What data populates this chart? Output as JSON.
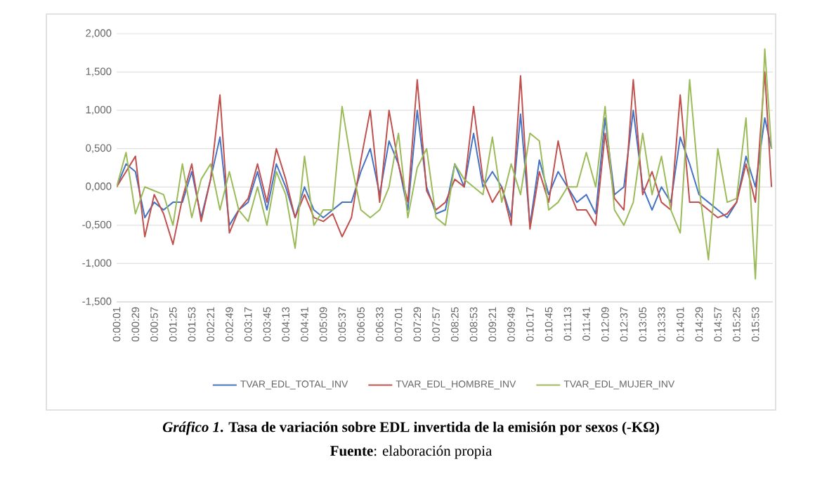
{
  "chart_data": {
    "type": "line",
    "title": "*Gráfico 1*. Tasa de variación sobre EDL invertida de la emisión por sexos (-KΩ)",
    "annotations": [
      "**Fuente**: elaboración propia"
    ],
    "x": [
      0.000278,
      0.004167,
      0.008056,
      0.011944,
      0.015833,
      0.019722,
      0.023611,
      0.0275,
      0.031389,
      0.035278,
      0.039167,
      0.043056,
      0.046944,
      0.050833,
      0.054722,
      0.058611,
      0.0625,
      0.066389,
      0.070278,
      0.074167,
      0.078056,
      0.081944,
      0.085833,
      0.089722,
      0.093611,
      0.0975,
      0.101389,
      0.105278,
      0.109167,
      0.113056,
      0.116944,
      0.120833,
      0.124722,
      0.128611,
      0.1325,
      0.136389,
      0.140278,
      0.144167,
      0.148056,
      0.151944,
      0.155833,
      0.159722,
      0.163611,
      0.1675,
      0.171389,
      0.175278,
      0.179167,
      0.183056,
      0.186944,
      0.190833,
      0.194722,
      0.198611,
      0.2025,
      0.206389,
      0.210278,
      0.214167,
      0.218056,
      0.221944,
      0.225833,
      0.229722,
      0.233611,
      0.2375,
      0.241389,
      0.245278,
      0.249167,
      0.253056,
      0.256944,
      0.260833,
      0.264722,
      0.268611,
      0.271389
    ],
    "series": [
      {
        "name": "TVAR_EDL_TOTAL_INV",
        "color": "#4472c4",
        "values": [
          0,
          0.3,
          0.2,
          -0.4,
          -0.2,
          -0.3,
          -0.2,
          -0.2,
          0.2,
          -0.4,
          0.1,
          0.65,
          -0.5,
          -0.3,
          -0.2,
          0.2,
          -0.3,
          0.3,
          0,
          -0.4,
          0,
          -0.3,
          -0.4,
          -0.3,
          -0.2,
          -0.2,
          0.2,
          0.5,
          -0.1,
          0.6,
          0.3,
          -0.3,
          1.0,
          0,
          -0.35,
          -0.3,
          0.3,
          0,
          0.7,
          0,
          0.2,
          0,
          -0.4,
          0.95,
          -0.5,
          0.35,
          -0.1,
          0.2,
          0,
          -0.2,
          -0.1,
          -0.35,
          0.9,
          -0.1,
          0,
          1.0,
          0,
          -0.3,
          0,
          -0.2,
          0.65,
          0.3,
          -0.1,
          -0.2,
          -0.3,
          -0.4,
          -0.2,
          0.4,
          0,
          0.9,
          0.5
        ]
      },
      {
        "name": "TVAR_EDL_HOMBRE_INV",
        "color": "#c0504d",
        "values": [
          0,
          0.2,
          0.4,
          -0.65,
          -0.1,
          -0.35,
          -0.75,
          -0.15,
          0.3,
          -0.45,
          0.1,
          1.2,
          -0.6,
          -0.3,
          -0.15,
          0.3,
          -0.2,
          0.5,
          0.1,
          -0.4,
          -0.1,
          -0.4,
          -0.45,
          -0.35,
          -0.65,
          -0.4,
          0.35,
          1.0,
          -0.2,
          1.0,
          0.3,
          -0.2,
          1.4,
          -0.05,
          -0.3,
          -0.2,
          0.1,
          0,
          1.05,
          0.1,
          -0.2,
          0,
          -0.5,
          1.45,
          -0.55,
          0.2,
          -0.2,
          0.6,
          0,
          -0.3,
          -0.3,
          -0.5,
          0.7,
          -0.15,
          -0.3,
          1.4,
          -0.1,
          0.2,
          -0.2,
          -0.3,
          1.2,
          -0.2,
          -0.2,
          -0.3,
          -0.4,
          -0.35,
          -0.2,
          0.3,
          -0.2,
          1.5,
          0
        ]
      },
      {
        "name": "TVAR_EDL_MUJER_INV",
        "color": "#9bbb59",
        "values": [
          0,
          0.45,
          -0.35,
          0,
          -0.05,
          -0.1,
          -0.5,
          0.3,
          -0.4,
          0.1,
          0.3,
          -0.3,
          0.2,
          -0.3,
          -0.45,
          0,
          -0.5,
          0.2,
          -0.1,
          -0.8,
          0.4,
          -0.5,
          -0.3,
          -0.3,
          1.05,
          0.3,
          -0.3,
          -0.4,
          -0.3,
          0,
          0.7,
          -0.4,
          0.25,
          0.5,
          -0.4,
          -0.5,
          0.3,
          0.1,
          0,
          -0.1,
          0.65,
          -0.2,
          0.3,
          -0.1,
          0.7,
          0.6,
          -0.3,
          -0.2,
          0,
          0,
          0.45,
          0,
          1.05,
          -0.3,
          -0.5,
          -0.2,
          0.7,
          -0.1,
          0.4,
          -0.3,
          -0.6,
          1.4,
          0,
          -0.95,
          0.5,
          -0.2,
          -0.15,
          0.9,
          -1.2,
          1.8,
          0.5
        ]
      }
    ],
    "xlim": [
      0.000278,
      0.271944
    ],
    "xticks": [
      {
        "value": 0.000278,
        "label": "0:00:01"
      },
      {
        "value": 0.008056,
        "label": "0:00:29"
      },
      {
        "value": 0.015833,
        "label": "0:00:57"
      },
      {
        "value": 0.023611,
        "label": "0:01:25"
      },
      {
        "value": 0.031389,
        "label": "0:01:53"
      },
      {
        "value": 0.039167,
        "label": "0:02:21"
      },
      {
        "value": 0.046944,
        "label": "0:02:49"
      },
      {
        "value": 0.054722,
        "label": "0:03:17"
      },
      {
        "value": 0.0625,
        "label": "0:03:45"
      },
      {
        "value": 0.070278,
        "label": "0:04:13"
      },
      {
        "value": 0.078056,
        "label": "0:04:41"
      },
      {
        "value": 0.085833,
        "label": "0:05:09"
      },
      {
        "value": 0.093611,
        "label": "0:05:37"
      },
      {
        "value": 0.101389,
        "label": "0:06:05"
      },
      {
        "value": 0.109167,
        "label": "0:06:33"
      },
      {
        "value": 0.116944,
        "label": "0:07:01"
      },
      {
        "value": 0.124722,
        "label": "0:07:29"
      },
      {
        "value": 0.1325,
        "label": "0:07:57"
      },
      {
        "value": 0.140278,
        "label": "0:08:25"
      },
      {
        "value": 0.148056,
        "label": "0:08:53"
      },
      {
        "value": 0.155833,
        "label": "0:09:21"
      },
      {
        "value": 0.163611,
        "label": "0:09:49"
      },
      {
        "value": 0.171389,
        "label": "0:10:17"
      },
      {
        "value": 0.179167,
        "label": "0:10:45"
      },
      {
        "value": 0.186944,
        "label": "0:11:13"
      },
      {
        "value": 0.194722,
        "label": "0:11:41"
      },
      {
        "value": 0.2025,
        "label": "0:12:09"
      },
      {
        "value": 0.210278,
        "label": "0:12:37"
      },
      {
        "value": 0.218056,
        "label": "0:13:05"
      },
      {
        "value": 0.225833,
        "label": "0:13:33"
      },
      {
        "value": 0.233611,
        "label": "0:14:01"
      },
      {
        "value": 0.241389,
        "label": "0:14:29"
      },
      {
        "value": 0.249167,
        "label": "0:14:57"
      },
      {
        "value": 0.256944,
        "label": "0:15:25"
      },
      {
        "value": 0.264722,
        "label": "0:15:53"
      }
    ],
    "ylim": [
      -1.5,
      2.0
    ],
    "yticks": [
      {
        "value": -1.5,
        "label": "-1,500"
      },
      {
        "value": -1.0,
        "label": "-1,000"
      },
      {
        "value": -0.5,
        "label": "-0,500"
      },
      {
        "value": 0,
        "label": "0,000"
      },
      {
        "value": 0.5,
        "label": "0,500"
      },
      {
        "value": 1.0,
        "label": "1,000"
      },
      {
        "value": 1.5,
        "label": "1,500"
      },
      {
        "value": 2.0,
        "label": "2,000"
      }
    ],
    "grid": "y",
    "legend": "bottom",
    "line_style": "solid"
  }
}
